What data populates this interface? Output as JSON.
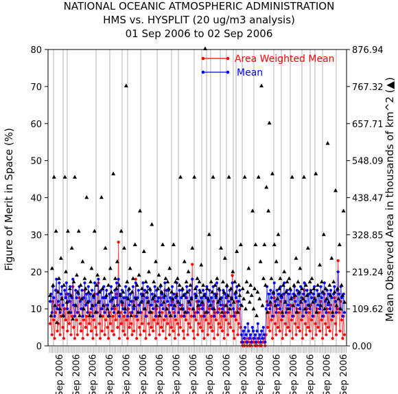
{
  "chart_data": {
    "type": "line",
    "title": "NATIONAL OCEANIC ATMOSPHERIC ADMINISTRATION",
    "subtitle": "HMS vs. HYSPLIT (20 ug/m3 analysis)",
    "date_range": "01 Sep 2006 to 02 Sep 2006",
    "ylabel": "Figure of Merit in Space (%)",
    "y2label": "Mean Observed Area in thousands of km^2 (▲)",
    "ylim": [
      0,
      80
    ],
    "y_ticks": [
      "0",
      "10",
      "20",
      "30",
      "40",
      "50",
      "60",
      "70",
      "80"
    ],
    "y2lim": [
      0,
      876.94
    ],
    "y2_ticks": [
      "0.00",
      "109.62",
      "219.24",
      "328.85",
      "438.47",
      "548.09",
      "657.71",
      "767.32",
      "876.94"
    ],
    "x_tick_labels": [
      "Sep 2006",
      "Sep 2006",
      "Sep 2006",
      "Sep 2006",
      "Sep 2006",
      "Sep 2006",
      "Sep 2006",
      "Sep 2006",
      "Sep 2006",
      "Sep 2006",
      "Sep 2006",
      "Sep 2006",
      "Sep 2006",
      "Sep 2006",
      "Sep 2006",
      "Sep 2006",
      "Sep 2006",
      "Sep 2006"
    ],
    "legend_position": "top-right",
    "series": [
      {
        "name": "Area Weighted Mean",
        "color": "#ff0000",
        "marker": "circle",
        "values": [
          6,
          8,
          3,
          12,
          7,
          2,
          9,
          15,
          4,
          6,
          11,
          3,
          8,
          13,
          5,
          2,
          10,
          7,
          14,
          4,
          9,
          6,
          12,
          3,
          8,
          16,
          5,
          2,
          11,
          7,
          3,
          9,
          13,
          6,
          4,
          10,
          2,
          7,
          15,
          5,
          8,
          3,
          12,
          6,
          9,
          4,
          11,
          2,
          7,
          14,
          5,
          3,
          9,
          17,
          6,
          2,
          10,
          4,
          8,
          13,
          3,
          7,
          11,
          5,
          2,
          9,
          6,
          12,
          4,
          8,
          3,
          10,
          7,
          14,
          5,
          28,
          2,
          9,
          6,
          11,
          4,
          8,
          3,
          13,
          7,
          2,
          10,
          5,
          9,
          6,
          3,
          12,
          4,
          8,
          18,
          2,
          7,
          11,
          5,
          3,
          9,
          6,
          14,
          4,
          10,
          2,
          8,
          13,
          6,
          3,
          11,
          5,
          9,
          4,
          7,
          12,
          2,
          10,
          6,
          8,
          3,
          13,
          5,
          9,
          4,
          7,
          15,
          2,
          10,
          6,
          11,
          3,
          8,
          5,
          12,
          4,
          9,
          2,
          7,
          14,
          6,
          3,
          10,
          5,
          8,
          11,
          4,
          2,
          9,
          7,
          13,
          3,
          6,
          10,
          5,
          8,
          22,
          4,
          2,
          9,
          7,
          12,
          3,
          6,
          10,
          5,
          8,
          4,
          11,
          2,
          9,
          7,
          13,
          3,
          6,
          10,
          5,
          8,
          4,
          12,
          2,
          9,
          7,
          14,
          3,
          6,
          10,
          5,
          8,
          4,
          11,
          2,
          9,
          7,
          13,
          3,
          6,
          10,
          5,
          8,
          19,
          4,
          2,
          9,
          7,
          12,
          3,
          6,
          10,
          5,
          1,
          0,
          1,
          0,
          2,
          1,
          0,
          1,
          2,
          0,
          1,
          0,
          1,
          2,
          1,
          0,
          1,
          0,
          2,
          1,
          0,
          1,
          0,
          1,
          2,
          1,
          0,
          3,
          12,
          5,
          9,
          4,
          11,
          7,
          2,
          8,
          13,
          6,
          3,
          10,
          5,
          9,
          4,
          12,
          7,
          2,
          8,
          14,
          6,
          3,
          10,
          5,
          9,
          4,
          11,
          7,
          2,
          8,
          13,
          6,
          3,
          10,
          5,
          9,
          4,
          12,
          7,
          2,
          8,
          15,
          6,
          3,
          10,
          5,
          9,
          4,
          11,
          7,
          2,
          8,
          13,
          6,
          3,
          10,
          5,
          9,
          4,
          12,
          7,
          2,
          8,
          14,
          6,
          3,
          10,
          5,
          9,
          4,
          11,
          7,
          2,
          8,
          13,
          6,
          3,
          10,
          23,
          9,
          4,
          12,
          7,
          2,
          8,
          3
        ]
      },
      {
        "name": "Mean",
        "color": "#0000ff",
        "marker": "circle",
        "values": [
          12,
          14,
          9,
          16,
          13,
          8,
          15,
          18,
          10,
          12,
          17,
          9,
          14,
          16,
          11,
          8,
          15,
          13,
          17,
          10,
          14,
          12,
          16,
          9,
          13,
          18,
          11,
          8,
          15,
          13,
          9,
          14,
          16,
          12,
          10,
          15,
          8,
          13,
          17,
          11,
          14,
          9,
          16,
          12,
          14,
          10,
          15,
          8,
          13,
          17,
          11,
          9,
          14,
          18,
          12,
          8,
          15,
          10,
          13,
          16,
          9,
          13,
          15,
          11,
          8,
          14,
          12,
          16,
          10,
          13,
          9,
          15,
          13,
          17,
          11,
          18,
          8,
          14,
          12,
          15,
          10,
          13,
          9,
          16,
          13,
          8,
          15,
          11,
          14,
          12,
          9,
          16,
          10,
          13,
          17,
          8,
          13,
          15,
          11,
          9,
          14,
          12,
          17,
          10,
          15,
          8,
          13,
          16,
          12,
          9,
          15,
          11,
          14,
          10,
          13,
          16,
          8,
          15,
          12,
          13,
          9,
          16,
          11,
          14,
          10,
          13,
          17,
          8,
          15,
          12,
          15,
          9,
          13,
          11,
          16,
          10,
          14,
          8,
          13,
          17,
          12,
          9,
          15,
          11,
          13,
          15,
          10,
          8,
          14,
          13,
          16,
          9,
          12,
          15,
          11,
          13,
          18,
          10,
          8,
          14,
          13,
          16,
          9,
          12,
          15,
          11,
          13,
          10,
          15,
          8,
          14,
          13,
          16,
          9,
          12,
          15,
          11,
          13,
          10,
          16,
          8,
          14,
          13,
          17,
          9,
          12,
          15,
          11,
          13,
          10,
          15,
          8,
          14,
          13,
          16,
          9,
          12,
          15,
          11,
          13,
          17,
          10,
          8,
          14,
          13,
          16,
          9,
          12,
          15,
          11,
          3,
          1,
          4,
          2,
          5,
          3,
          1,
          6,
          4,
          2,
          3,
          1,
          5,
          4,
          2,
          3,
          1,
          4,
          6,
          2,
          3,
          1,
          4,
          2,
          5,
          3,
          1,
          10,
          16,
          11,
          14,
          10,
          15,
          13,
          8,
          14,
          17,
          12,
          9,
          15,
          11,
          14,
          10,
          16,
          13,
          8,
          14,
          17,
          12,
          9,
          15,
          11,
          14,
          10,
          15,
          13,
          8,
          14,
          16,
          12,
          9,
          15,
          11,
          14,
          10,
          16,
          13,
          8,
          14,
          17,
          12,
          9,
          15,
          11,
          14,
          10,
          15,
          13,
          8,
          14,
          16,
          12,
          9,
          15,
          11,
          14,
          10,
          16,
          13,
          8,
          14,
          17,
          12,
          9,
          15,
          11,
          14,
          10,
          15,
          13,
          8,
          14,
          16,
          12,
          9,
          15,
          20,
          14,
          10,
          16,
          13,
          8,
          14,
          9
        ]
      },
      {
        "name": "Mean Observed Area",
        "color": "#000000",
        "marker": "triangle",
        "axis": "right",
        "values": [
          150,
          90,
          230,
          180,
          500,
          120,
          340,
          70,
          160,
          200,
          110,
          260,
          140,
          90,
          180,
          500,
          220,
          130,
          340,
          100,
          170,
          150,
          290,
          80,
          190,
          500,
          120,
          210,
          160,
          340,
          90,
          180,
          140,
          250,
          110,
          200,
          170,
          440,
          130,
          160,
          90,
          190,
          230,
          120,
          150,
          340,
          100,
          180,
          210,
          130,
          160,
          90,
          440,
          170,
          120,
          200,
          290,
          150,
          110,
          180,
          90,
          230,
          160,
          140,
          510,
          120,
          200,
          170,
          250,
          100,
          180,
          150,
          340,
          130,
          160,
          290,
          110,
          770,
          190,
          140,
          170,
          230,
          90,
          160,
          200,
          120,
          300,
          140,
          180,
          100,
          210,
          400,
          130,
          170,
          150,
          280,
          110,
          190,
          160,
          130,
          220,
          170,
          100,
          360,
          140,
          190,
          150,
          250,
          120,
          170,
          210,
          90,
          180,
          160,
          300,
          130,
          150,
          200,
          110,
          190,
          170,
          230,
          90,
          160,
          140,
          300,
          120,
          190,
          150,
          200,
          130,
          180,
          500,
          110,
          170,
          150,
          250,
          100,
          190,
          160,
          220,
          130,
          180,
          140,
          290,
          110,
          500,
          170,
          150,
          200,
          120,
          190,
          160,
          240,
          130,
          180,
          150,
          880,
          100,
          170,
          140,
          330,
          120,
          190,
          160,
          500,
          110,
          180,
          150,
          200,
          130,
          170,
          140,
          290,
          100,
          190,
          160,
          260,
          120,
          180,
          150,
          500,
          110,
          170,
          140,
          220,
          130,
          190,
          160,
          280,
          100,
          180,
          150,
          300,
          120,
          170,
          140,
          500,
          110,
          190,
          160,
          230,
          130,
          180,
          150,
          400,
          110,
          170,
          300,
          90,
          160,
          500,
          140,
          250,
          770,
          120,
          200,
          300,
          180,
          470,
          100,
          400,
          660,
          130,
          200,
          510,
          160,
          300,
          120,
          250,
          140,
          330,
          170,
          200,
          150,
          100,
          180,
          220,
          130,
          160,
          190,
          110,
          200,
          170,
          140,
          500,
          120,
          180,
          150,
          260,
          100,
          190,
          160,
          230,
          130,
          170,
          140,
          500,
          110,
          180,
          150,
          290,
          120,
          190,
          160,
          200,
          130,
          170,
          140,
          510,
          100,
          180,
          150,
          240,
          120,
          190,
          160,
          330,
          110,
          170,
          140,
          600,
          130,
          180,
          150,
          260,
          100,
          190,
          160,
          460,
          120,
          170,
          140,
          300,
          110,
          180,
          150,
          400,
          130
        ]
      }
    ]
  }
}
